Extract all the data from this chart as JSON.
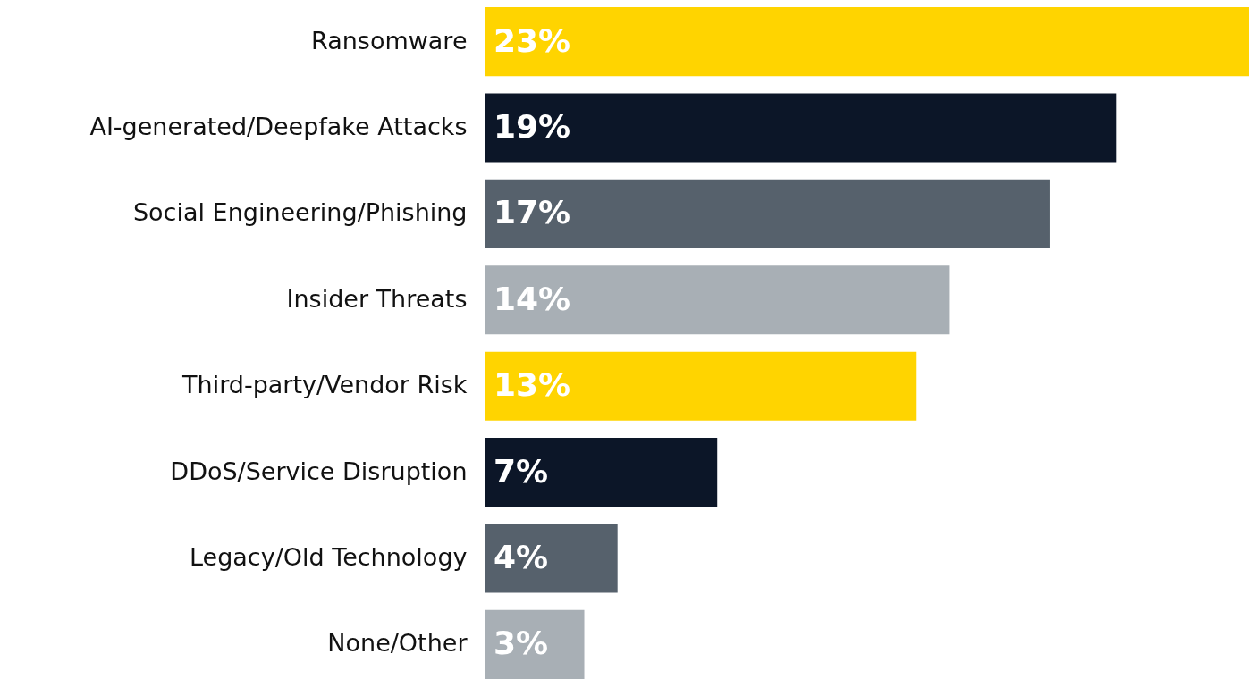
{
  "chart_data": {
    "type": "bar",
    "orientation": "horizontal",
    "categories": [
      "Ransomware",
      "AI-generated/Deepfake Attacks",
      "Social Engineering/Phishing",
      "Insider Threats",
      "Third-party/Vendor Risk",
      "DDoS/Service Disruption",
      "Legacy/Old Technology",
      "None/Other"
    ],
    "values": [
      23,
      19,
      17,
      14,
      13,
      7,
      4,
      3
    ],
    "value_labels": [
      "23%",
      "19%",
      "17%",
      "14%",
      "13%",
      "7%",
      "4%",
      "3%"
    ],
    "colors": [
      "#ffd400",
      "#0c1628",
      "#56616c",
      "#a8afb5",
      "#ffd400",
      "#0c1628",
      "#56616c",
      "#a8afb5"
    ],
    "xlim": [
      0,
      23
    ],
    "tick_labels": "y"
  }
}
